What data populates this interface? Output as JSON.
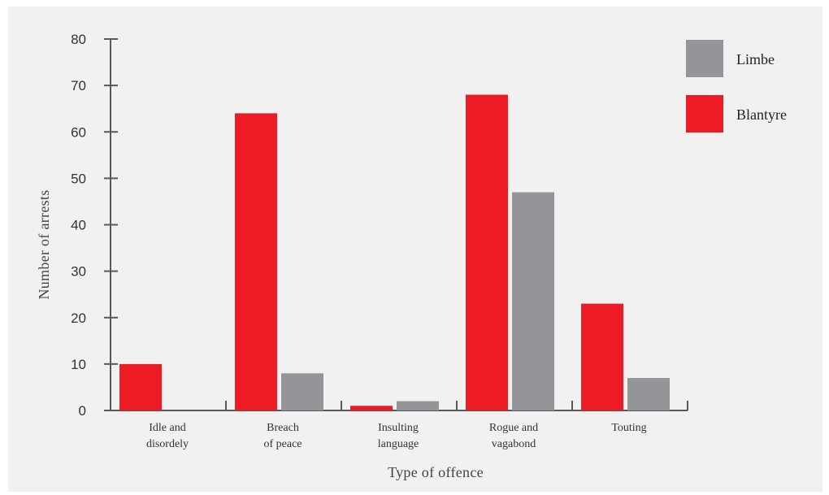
{
  "chart_data": {
    "type": "bar",
    "categories": [
      [
        "Idle and",
        "disordely"
      ],
      [
        "Breach",
        "of peace"
      ],
      [
        "Insulting",
        "language"
      ],
      [
        "Rogue and",
        "vagabond"
      ],
      [
        "Touting"
      ]
    ],
    "series": [
      {
        "name": "Blantyre",
        "color": "#ed1c24",
        "values": [
          10,
          64,
          1,
          68,
          23
        ]
      },
      {
        "name": "Limbe",
        "color": "#939598",
        "values": [
          0,
          8,
          2,
          47,
          7
        ]
      }
    ],
    "legend_order": [
      "Limbe",
      "Blantyre"
    ],
    "legend_position": "top-right",
    "xlabel": "Type of offence",
    "ylabel": "Number of arrests",
    "ylim": [
      0,
      80
    ],
    "yticks": [
      0,
      10,
      20,
      30,
      40,
      50,
      60,
      70,
      80
    ],
    "grid": false
  }
}
